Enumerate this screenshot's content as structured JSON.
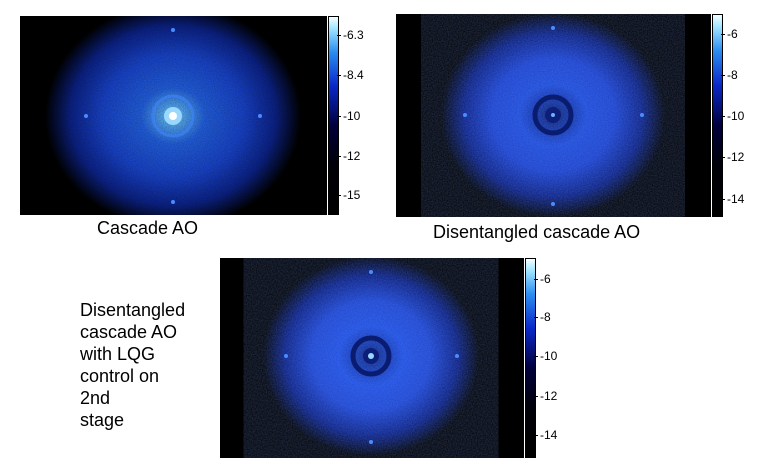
{
  "panels": [
    {
      "caption": "Cascade AO",
      "colorbar_ticks": [
        "-6.3",
        "-8.4",
        "-10",
        "-12",
        "-15"
      ]
    },
    {
      "caption": "Disentangled cascade AO",
      "colorbar_ticks": [
        "-6",
        "-8",
        "-10",
        "-12",
        "-14"
      ]
    },
    {
      "caption_lines": [
        "Disentangled",
        "cascade AO",
        "with LQG",
        "control on 2nd",
        "stage"
      ],
      "colorbar_ticks": [
        "-6",
        "-8",
        "-10",
        "-12",
        "-14"
      ]
    }
  ],
  "colors": {
    "background": "#000000",
    "halo": "#1e50ff",
    "core": "#bfeeff"
  }
}
